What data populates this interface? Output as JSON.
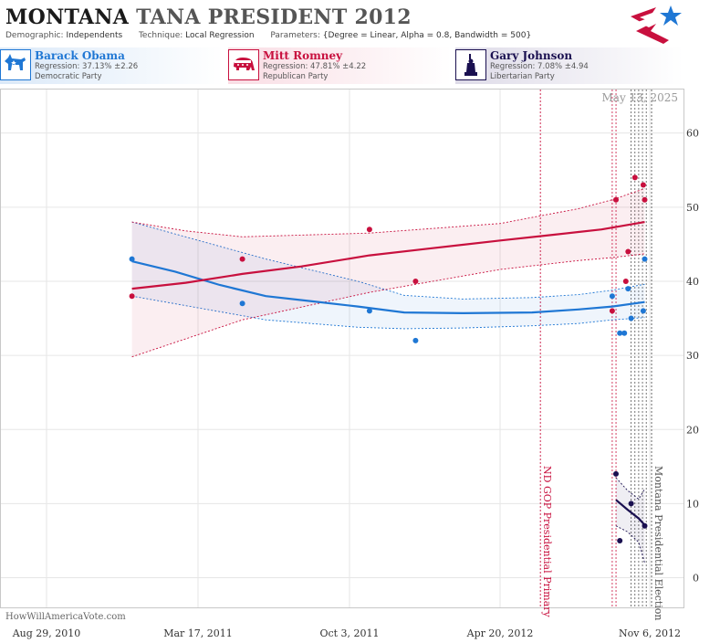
{
  "header": {
    "title_state": "MONTANA",
    "title_rest": "TANA PRESIDENT 2012",
    "demographic_label": "Demographic:",
    "demographic_value": "Independents",
    "technique_label": "Technique:",
    "technique_value": "Local Regression",
    "parameters_label": "Parameters:",
    "parameters_value": "{Degree = Linear, Alpha = 0.8, Bandwidth = 500}"
  },
  "candidates": [
    {
      "name": "Barack Obama",
      "regression": "Regression: 37.13% ±2.26",
      "party": "Democratic Party",
      "color": "#1f77d4",
      "icon": "donkey-icon"
    },
    {
      "name": "Mitt Romney",
      "regression": "Regression: 47.81% ±4.22",
      "party": "Republican Party",
      "color": "#c8103e",
      "icon": "elephant-icon"
    },
    {
      "name": "Gary Johnson",
      "regression": "Regression: 7.08% ±4.94",
      "party": "Libertarian Party",
      "color": "#1a1050",
      "icon": "statue-of-liberty-icon"
    }
  ],
  "watermark": "HowWillAmericaVote.com",
  "date_stamp": "May 13, 2025",
  "chart_data": {
    "type": "scatter",
    "x_ticks": [
      "Aug 29, 2010",
      "Mar 17, 2011",
      "Oct 3, 2011",
      "Apr 20, 2012",
      "Nov 6, 2012"
    ],
    "x_range": [
      "2010-08-29",
      "2012-11-06"
    ],
    "y_ticks": [
      0,
      10,
      20,
      30,
      40,
      50,
      60
    ],
    "ylim": [
      -4,
      66
    ],
    "grid": true,
    "annotations": [
      {
        "label": "ND GOP Presidential Primary",
        "date": "2012-06-12",
        "color": "#c8103e"
      },
      {
        "label": "Montana Presidential Election",
        "date": "2012-11-06",
        "color": "#555555"
      }
    ],
    "poll_dates": [
      "2012-09-15",
      "2012-09-20",
      "2012-10-10",
      "2012-10-15",
      "2012-10-20",
      "2012-10-25",
      "2012-10-30"
    ],
    "series": [
      {
        "name": "Barack Obama",
        "color": "#1f77d4",
        "points": [
          [
            "2010-12-20",
            43
          ],
          [
            "2011-05-15",
            37
          ],
          [
            "2011-10-30",
            36
          ],
          [
            "2011-12-30",
            32
          ],
          [
            "2012-09-15",
            38
          ],
          [
            "2012-09-25",
            33
          ],
          [
            "2012-10-01",
            33
          ],
          [
            "2012-10-06",
            39
          ],
          [
            "2012-10-10",
            35
          ],
          [
            "2012-10-26",
            36
          ],
          [
            "2012-10-28",
            43
          ]
        ],
        "trend": [
          [
            "2010-12-20",
            42.7
          ],
          [
            "2011-02-15",
            41.3
          ],
          [
            "2011-04-15",
            39.5
          ],
          [
            "2011-06-15",
            38.0
          ],
          [
            "2011-08-15",
            37.3
          ],
          [
            "2011-10-15",
            36.6
          ],
          [
            "2011-12-15",
            35.8
          ],
          [
            "2012-03-01",
            35.7
          ],
          [
            "2012-06-01",
            35.8
          ],
          [
            "2012-08-01",
            36.2
          ],
          [
            "2012-09-15",
            36.6
          ],
          [
            "2012-10-28",
            37.2
          ]
        ],
        "band_upper": [
          [
            "2010-12-20",
            48.0
          ],
          [
            "2011-06-15",
            43.0
          ],
          [
            "2011-10-15",
            40.0
          ],
          [
            "2011-12-15",
            38.1
          ],
          [
            "2012-03-01",
            37.6
          ],
          [
            "2012-06-01",
            37.8
          ],
          [
            "2012-08-01",
            38.2
          ],
          [
            "2012-09-15",
            38.8
          ],
          [
            "2012-10-28",
            39.6
          ]
        ],
        "band_lower": [
          [
            "2010-12-20",
            38.0
          ],
          [
            "2011-06-15",
            34.8
          ],
          [
            "2011-10-15",
            33.8
          ],
          [
            "2011-12-15",
            33.6
          ],
          [
            "2012-03-01",
            33.7
          ],
          [
            "2012-06-01",
            34.0
          ],
          [
            "2012-08-01",
            34.3
          ],
          [
            "2012-09-15",
            34.8
          ],
          [
            "2012-10-28",
            35.1
          ]
        ]
      },
      {
        "name": "Mitt Romney",
        "color": "#c8103e",
        "points": [
          [
            "2010-12-20",
            38
          ],
          [
            "2011-05-15",
            43
          ],
          [
            "2011-10-30",
            47
          ],
          [
            "2011-12-30",
            40
          ],
          [
            "2012-09-15",
            36
          ],
          [
            "2012-09-20",
            51
          ],
          [
            "2012-10-06",
            44
          ],
          [
            "2012-10-03",
            40
          ],
          [
            "2012-10-15",
            54
          ],
          [
            "2012-10-26",
            53
          ],
          [
            "2012-10-28",
            51
          ]
        ],
        "trend": [
          [
            "2010-12-20",
            39.0
          ],
          [
            "2011-03-01",
            39.8
          ],
          [
            "2011-05-15",
            41.0
          ],
          [
            "2011-08-01",
            42.0
          ],
          [
            "2011-10-30",
            43.5
          ],
          [
            "2012-01-15",
            44.4
          ],
          [
            "2012-04-20",
            45.5
          ],
          [
            "2012-07-01",
            46.3
          ],
          [
            "2012-09-01",
            47.0
          ],
          [
            "2012-10-28",
            48.0
          ]
        ],
        "band_upper": [
          [
            "2010-12-20",
            48.0
          ],
          [
            "2011-03-01",
            46.8
          ],
          [
            "2011-05-15",
            46.0
          ],
          [
            "2011-10-30",
            46.5
          ],
          [
            "2012-04-20",
            47.8
          ],
          [
            "2012-08-01",
            49.8
          ],
          [
            "2012-09-15",
            51.0
          ],
          [
            "2012-10-28",
            52.5
          ]
        ],
        "band_lower": [
          [
            "2010-12-20",
            29.8
          ],
          [
            "2011-05-15",
            34.8
          ],
          [
            "2011-10-30",
            38.5
          ],
          [
            "2012-04-20",
            41.6
          ],
          [
            "2012-08-01",
            42.8
          ],
          [
            "2012-09-15",
            43.2
          ],
          [
            "2012-10-28",
            43.7
          ]
        ]
      },
      {
        "name": "Gary Johnson",
        "color": "#1a1050",
        "points": [
          [
            "2012-09-20",
            14
          ],
          [
            "2012-09-25",
            5
          ],
          [
            "2012-10-10",
            10
          ],
          [
            "2012-10-28",
            7
          ]
        ],
        "trend": [
          [
            "2012-09-20",
            10.5
          ],
          [
            "2012-10-05",
            9.2
          ],
          [
            "2012-10-20",
            8.0
          ],
          [
            "2012-10-28",
            7.1
          ]
        ],
        "band_upper": [
          [
            "2012-09-20",
            13.5
          ],
          [
            "2012-10-05",
            11.8
          ],
          [
            "2012-10-20",
            10.6
          ],
          [
            "2012-10-28",
            12.0
          ]
        ],
        "band_lower": [
          [
            "2012-09-20",
            7.0
          ],
          [
            "2012-10-05",
            6.2
          ],
          [
            "2012-10-20",
            4.8
          ],
          [
            "2012-10-28",
            2.0
          ]
        ]
      }
    ]
  }
}
